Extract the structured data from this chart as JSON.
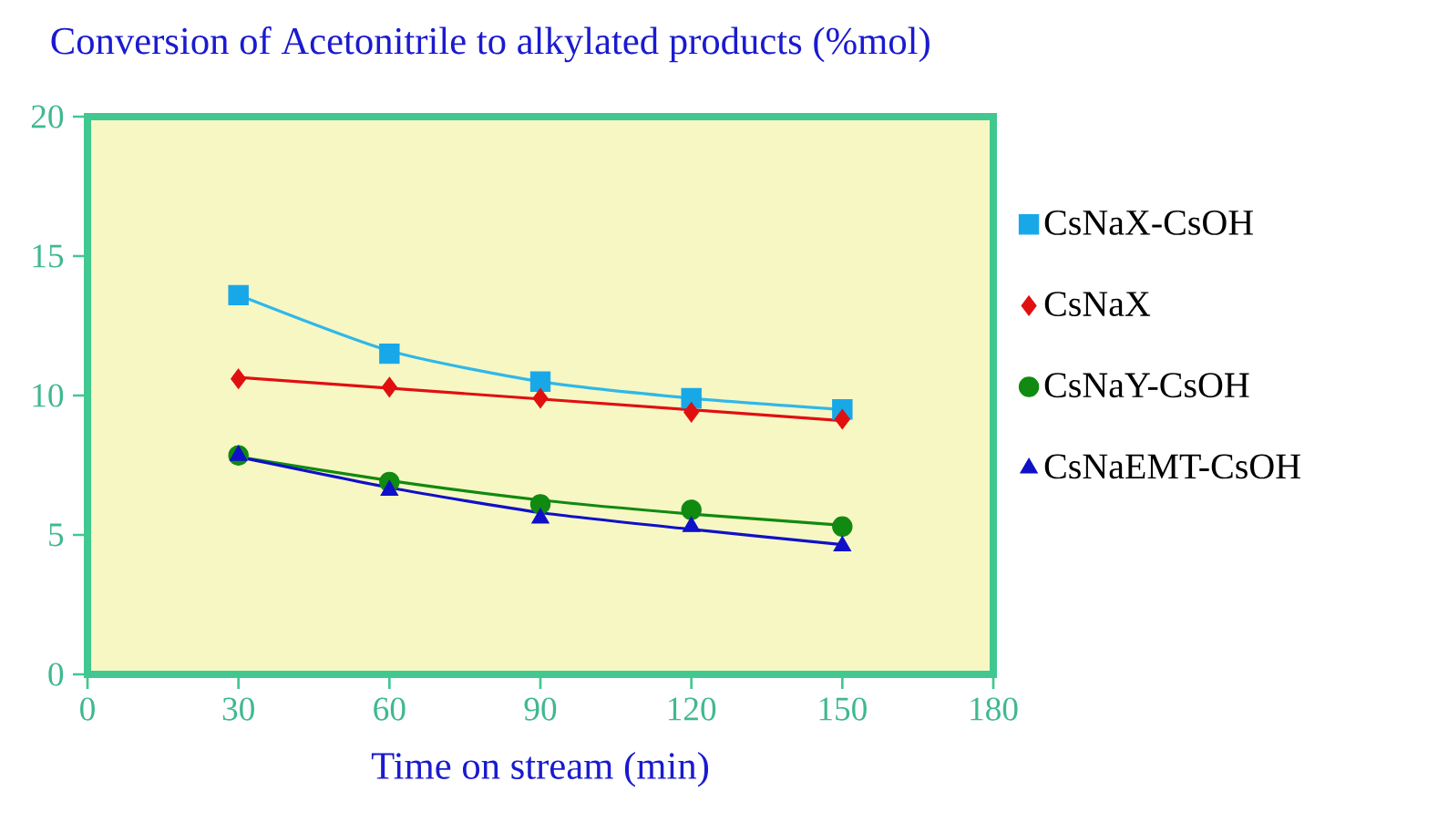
{
  "chart_data": {
    "type": "scatter",
    "title": "Conversion of Acetonitrile to alkylated products (%mol)",
    "xlabel": "Time on stream (min)",
    "xlim": [
      0,
      180
    ],
    "xticks": [
      0,
      30,
      60,
      90,
      120,
      150,
      180
    ],
    "ylim": [
      0,
      20
    ],
    "yticks": [
      0,
      5,
      10,
      15,
      20
    ],
    "grid": false,
    "legend": "right",
    "series": [
      {
        "name": "CsNaX-CsOH",
        "marker": "square",
        "color": "#18a8e8",
        "x": [
          30,
          60,
          90,
          120,
          150
        ],
        "values": [
          13.6,
          11.5,
          10.5,
          9.9,
          9.5
        ]
      },
      {
        "name": "CsNaX",
        "marker": "diamond",
        "color": "#e01010",
        "x": [
          30,
          60,
          90,
          120,
          150
        ],
        "values": [
          10.6,
          10.3,
          9.9,
          9.4,
          9.15
        ]
      },
      {
        "name": "CsNaY-CsOH",
        "marker": "circle",
        "color": "#108a10",
        "x": [
          30,
          60,
          90,
          120,
          150
        ],
        "values": [
          7.85,
          6.9,
          6.1,
          5.9,
          5.3
        ]
      },
      {
        "name": "CsNaEMT-CsOH",
        "marker": "triangle",
        "color": "#1010c8",
        "x": [
          30,
          60,
          90,
          120,
          150
        ],
        "values": [
          7.85,
          6.6,
          5.6,
          5.3,
          4.6
        ]
      },
      {
        "type": "line",
        "color": "#30b8e8",
        "x": [
          30,
          60,
          90,
          120,
          150
        ],
        "values": [
          13.6,
          11.6,
          10.5,
          9.9,
          9.5
        ]
      },
      {
        "type": "line",
        "color": "#e01010",
        "x": [
          30,
          150
        ],
        "values": [
          10.65,
          9.1
        ]
      },
      {
        "type": "line",
        "color": "#108a10",
        "x": [
          30,
          60,
          90,
          120,
          150
        ],
        "values": [
          7.8,
          6.95,
          6.25,
          5.75,
          5.35
        ]
      },
      {
        "type": "line",
        "color": "#1010c8",
        "x": [
          30,
          60,
          90,
          120,
          150
        ],
        "values": [
          7.8,
          6.7,
          5.8,
          5.2,
          4.65
        ]
      }
    ]
  }
}
